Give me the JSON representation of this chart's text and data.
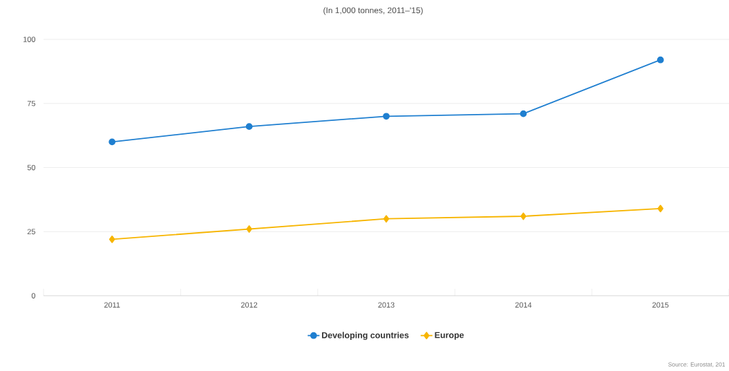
{
  "chart_data": {
    "type": "line",
    "title": "(In 1,000 tonnes, 2011–'15)",
    "categories": [
      "2011",
      "2012",
      "2013",
      "2014",
      "2015"
    ],
    "series": [
      {
        "name": "Developing countries",
        "color": "#1f7fd0",
        "marker": "circle",
        "values": [
          60,
          66,
          70,
          71,
          92
        ]
      },
      {
        "name": "Europe",
        "color": "#f7b500",
        "marker": "diamond",
        "values": [
          22,
          26,
          30,
          31,
          34
        ]
      }
    ],
    "ylim": [
      0,
      100
    ],
    "yticks": [
      0,
      25,
      50,
      75,
      100
    ],
    "grid": "y",
    "legend": "bottom",
    "annotations": [
      "Source: Eurostat, 201"
    ]
  }
}
